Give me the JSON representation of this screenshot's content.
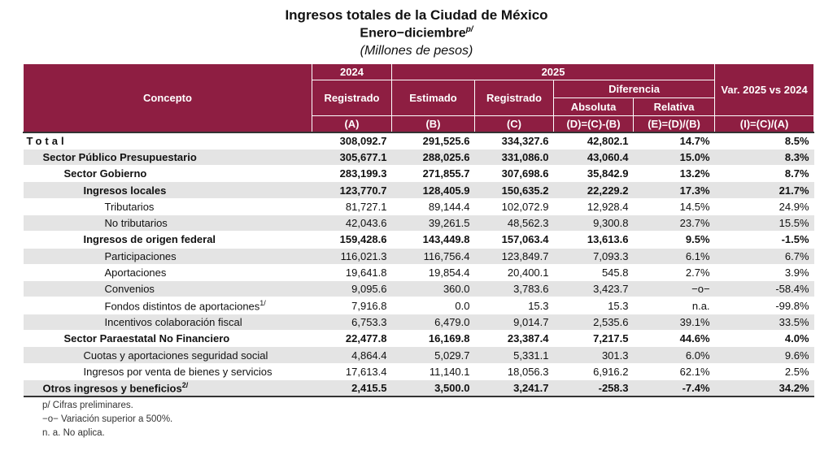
{
  "header": {
    "title": "Ingresos totales de la Ciudad de México",
    "subtitle": "Enero−diciembre",
    "subtitle_sup": "p/",
    "units": "(Millones de pesos)"
  },
  "table": {
    "head": {
      "concepto": "Concepto",
      "year_a": "2024",
      "year_b": "2025",
      "registrado_a": "Registrado",
      "estimado": "Estimado",
      "registrado_c": "Registrado",
      "diferencia": "Diferencia",
      "absoluta": "Absoluta",
      "relativa": "Relativa",
      "variacion": "Var. 2025 vs 2024",
      "formulas": [
        "(A)",
        "(B)",
        "(C)",
        "(D)=(C)-(B)",
        "(E)=(D)/(B)",
        "(I)=(C)/(A)"
      ]
    },
    "rows": [
      {
        "label": "Total",
        "level": 0,
        "bold": true,
        "shaded": false,
        "cells": [
          "308,092.7",
          "291,525.6",
          "334,327.6",
          "42,802.1",
          "14.7%",
          "8.5%"
        ]
      },
      {
        "label": "Sector Público Presupuestario",
        "level": 1,
        "bold": true,
        "shaded": true,
        "cells": [
          "305,677.1",
          "288,025.6",
          "331,086.0",
          "43,060.4",
          "15.0%",
          "8.3%"
        ]
      },
      {
        "label": "Sector Gobierno",
        "level": 2,
        "bold": true,
        "shaded": false,
        "cells": [
          "283,199.3",
          "271,855.7",
          "307,698.6",
          "35,842.9",
          "13.2%",
          "8.7%"
        ]
      },
      {
        "label": "Ingresos locales",
        "level": 3,
        "bold": true,
        "shaded": true,
        "cells": [
          "123,770.7",
          "128,405.9",
          "150,635.2",
          "22,229.2",
          "17.3%",
          "21.7%"
        ]
      },
      {
        "label": "Tributarios",
        "level": 4,
        "bold": false,
        "shaded": false,
        "cells": [
          "81,727.1",
          "89,144.4",
          "102,072.9",
          "12,928.4",
          "14.5%",
          "24.9%"
        ]
      },
      {
        "label": "No tributarios",
        "level": 4,
        "bold": false,
        "shaded": true,
        "cells": [
          "42,043.6",
          "39,261.5",
          "48,562.3",
          "9,300.8",
          "23.7%",
          "15.5%"
        ]
      },
      {
        "label": "Ingresos de origen federal",
        "level": 3,
        "bold": true,
        "shaded": false,
        "cells": [
          "159,428.6",
          "143,449.8",
          "157,063.4",
          "13,613.6",
          "9.5%",
          "-1.5%"
        ]
      },
      {
        "label": "Participaciones",
        "level": 4,
        "bold": false,
        "shaded": true,
        "cells": [
          "116,021.3",
          "116,756.4",
          "123,849.7",
          "7,093.3",
          "6.1%",
          "6.7%"
        ]
      },
      {
        "label": "Aportaciones",
        "level": 4,
        "bold": false,
        "shaded": false,
        "cells": [
          "19,641.8",
          "19,854.4",
          "20,400.1",
          "545.8",
          "2.7%",
          "3.9%"
        ]
      },
      {
        "label": "Convenios",
        "level": 4,
        "bold": false,
        "shaded": true,
        "cells": [
          "9,095.6",
          "360.0",
          "3,783.6",
          "3,423.7",
          "−o−",
          "-58.4%"
        ]
      },
      {
        "label": "Fondos distintos de aportaciones",
        "sup": "1/",
        "level": 4,
        "bold": false,
        "shaded": false,
        "cells": [
          "7,916.8",
          "0.0",
          "15.3",
          "15.3",
          "n.a.",
          "-99.8%"
        ]
      },
      {
        "label": "Incentivos colaboración fiscal",
        "level": 4,
        "bold": false,
        "shaded": true,
        "cells": [
          "6,753.3",
          "6,479.0",
          "9,014.7",
          "2,535.6",
          "39.1%",
          "33.5%"
        ]
      },
      {
        "label": "Sector Paraestatal No Financiero",
        "level": 2,
        "bold": true,
        "shaded": false,
        "cells": [
          "22,477.8",
          "16,169.8",
          "23,387.4",
          "7,217.5",
          "44.6%",
          "4.0%"
        ]
      },
      {
        "label": "Cuotas y aportaciones seguridad social",
        "level": 3,
        "bold": false,
        "shaded": true,
        "cells": [
          "4,864.4",
          "5,029.7",
          "5,331.1",
          "301.3",
          "6.0%",
          "9.6%"
        ]
      },
      {
        "label": "Ingresos por venta de bienes y servicios",
        "level": 3,
        "bold": false,
        "shaded": false,
        "cells": [
          "17,613.4",
          "11,140.1",
          "18,056.3",
          "6,916.2",
          "62.1%",
          "2.5%"
        ]
      },
      {
        "label": "Otros ingresos y beneficios",
        "sup": "2/",
        "level": 1,
        "bold": true,
        "shaded": true,
        "cells": [
          "2,415.5",
          "3,500.0",
          "3,241.7",
          "-258.3",
          "-7.4%",
          "34.2%"
        ]
      }
    ]
  },
  "footnotes": [
    "p/ Cifras preliminares.",
    "−o− Variación superior a 500%.",
    "n. a. No aplica."
  ]
}
